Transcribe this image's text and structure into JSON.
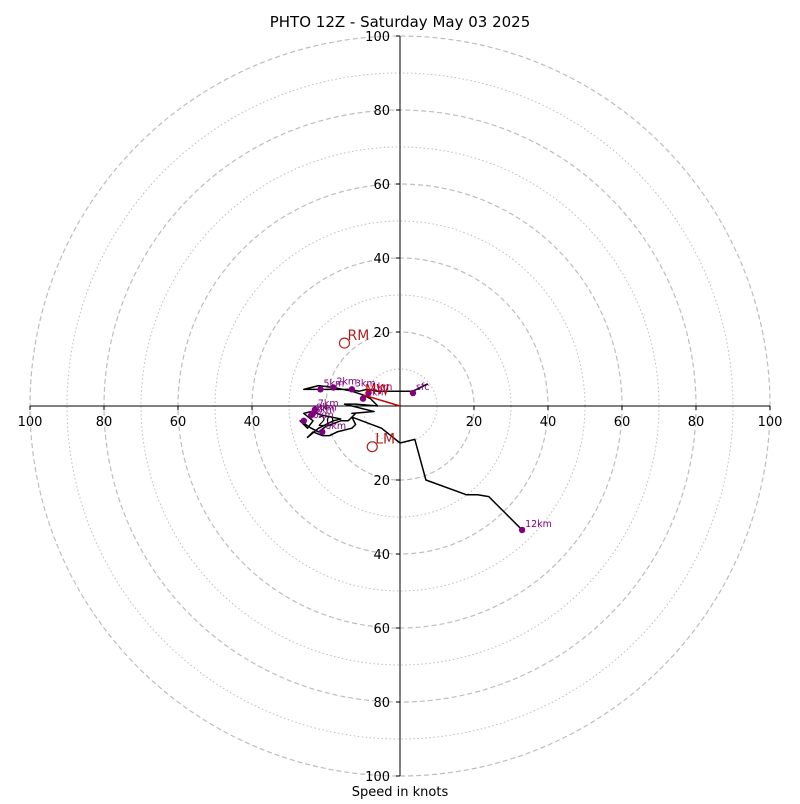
{
  "chart_data": {
    "type": "hodograph",
    "title": "PHTO 12Z - Saturday May 03 2025",
    "xlabel": "Speed in knots",
    "unit": "knots",
    "xlim": [
      -100,
      100
    ],
    "ylim": [
      -100,
      100
    ],
    "ring_major": [
      20,
      40,
      60,
      80,
      100
    ],
    "ring_minor": [
      10,
      30,
      50,
      70,
      90
    ],
    "tick_values": [
      100,
      80,
      60,
      40,
      20
    ],
    "grid": true,
    "colors": {
      "trace": "#000000",
      "markers": "#800080",
      "mean_wind": "#cc0000",
      "storm_motion": "#b22222",
      "grid": "#bdbdbd"
    },
    "trace": [
      [
        7.5,
        6
      ],
      [
        3.5,
        4
      ],
      [
        0,
        4
      ],
      [
        -4,
        4
      ],
      [
        -6,
        4
      ],
      [
        -9,
        4.5
      ],
      [
        -11,
        4
      ],
      [
        -14,
        4.5
      ],
      [
        -18,
        4.5
      ],
      [
        -21,
        4.5
      ],
      [
        -26,
        4.5
      ],
      [
        -22,
        5.5
      ],
      [
        -18,
        5
      ],
      [
        -13,
        4
      ],
      [
        -10,
        3
      ],
      [
        -8,
        2
      ],
      [
        -6,
        0
      ],
      [
        -12,
        0.5
      ],
      [
        -15,
        0.5
      ],
      [
        -7,
        -1.5
      ],
      [
        -13,
        -2
      ],
      [
        -12,
        -2
      ],
      [
        -13,
        -3
      ],
      [
        -14,
        -4
      ],
      [
        -16,
        -4
      ],
      [
        -20,
        -5.5
      ],
      [
        -22,
        -7
      ],
      [
        -24,
        -6
      ],
      [
        -27,
        -4
      ],
      [
        -25,
        -6
      ],
      [
        -23.5,
        -4
      ],
      [
        -26,
        -2
      ],
      [
        -24,
        -1.5
      ],
      [
        -21,
        -2.5
      ],
      [
        -16,
        -3.5
      ],
      [
        -18,
        -4
      ],
      [
        -22,
        -6
      ],
      [
        -25,
        -8.5
      ],
      [
        -23.5,
        -7
      ],
      [
        -21,
        -8
      ],
      [
        -19,
        -8
      ],
      [
        -17,
        -7
      ],
      [
        -13,
        -6
      ],
      [
        -12,
        -5
      ],
      [
        -13,
        -3
      ],
      [
        -5,
        -6
      ],
      [
        0,
        -10
      ],
      [
        4,
        -9
      ],
      [
        7,
        -20
      ],
      [
        18,
        -24
      ],
      [
        21,
        -24
      ],
      [
        24,
        -24.5
      ],
      [
        33,
        -33.5
      ]
    ],
    "height_markers": [
      {
        "label": "sfc",
        "x": 3.5,
        "y": 3.5
      },
      {
        "label": "1km",
        "x": -8.5,
        "y": 3.5
      },
      {
        "label": "2km",
        "x": -18,
        "y": 5
      },
      {
        "label": "3km",
        "x": -13,
        "y": 4.5
      },
      {
        "label": "4km",
        "x": -10,
        "y": 2
      },
      {
        "label": "5km",
        "x": -21.5,
        "y": 4.5
      },
      {
        "label": "6km",
        "x": -21,
        "y": -7
      },
      {
        "label": "7km",
        "x": -23,
        "y": -1
      },
      {
        "label": "8km",
        "x": -24,
        "y": -2.5
      },
      {
        "label": "9km",
        "x": -23.5,
        "y": -2
      },
      {
        "label": "10km",
        "x": -26,
        "y": -4
      },
      {
        "label": "12km",
        "x": 33,
        "y": -33.5
      }
    ],
    "mean_wind": {
      "label": "MW",
      "x": -10,
      "y": 3
    },
    "storm_motion": [
      {
        "label": "RM",
        "x": -15,
        "y": 17
      },
      {
        "label": "LM",
        "x": -7.5,
        "y": -11
      }
    ]
  }
}
